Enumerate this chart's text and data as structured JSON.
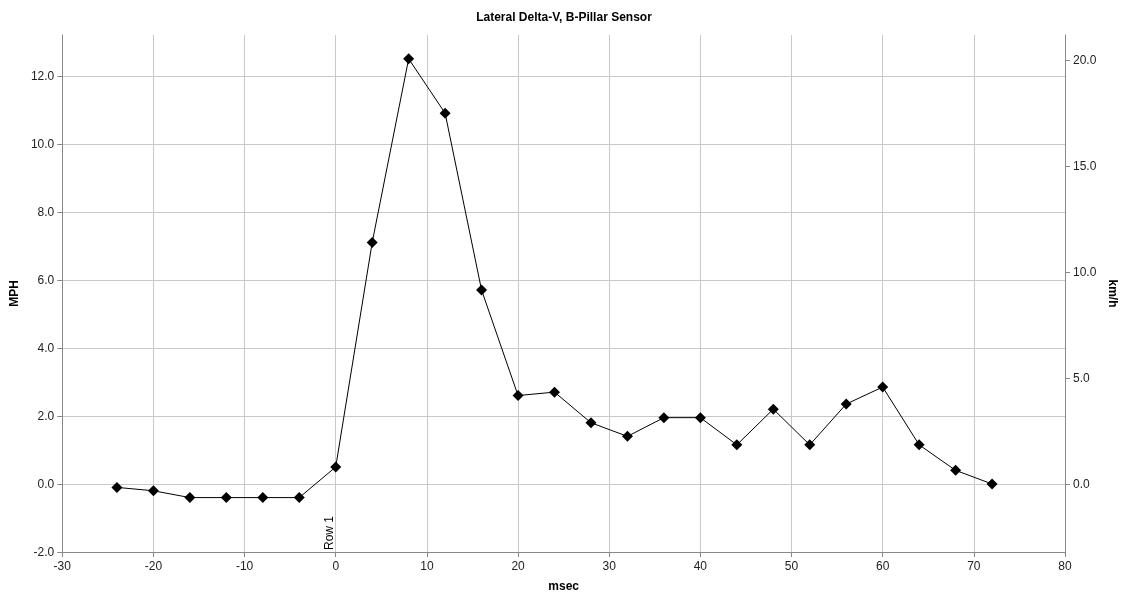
{
  "chart_data": {
    "type": "line",
    "title": "Lateral Delta-V, B-Pillar Sensor",
    "xlabel": "msec",
    "ylabel": "MPH",
    "y2label": "km/h",
    "x": [
      -24,
      -20,
      -16,
      -12,
      -8,
      -4,
      0,
      4,
      8,
      12,
      16,
      20,
      24,
      28,
      32,
      36,
      40,
      44,
      48,
      52,
      56,
      60,
      64,
      68,
      72
    ],
    "series": [
      {
        "color": "#000000",
        "values": [
          -0.1,
          -0.2,
          -0.4,
          -0.4,
          -0.4,
          -0.4,
          0.5,
          7.1,
          12.5,
          10.9,
          5.7,
          2.6,
          2.7,
          1.8,
          1.4,
          1.95,
          1.95,
          1.15,
          2.2,
          1.15,
          2.35,
          2.85,
          1.15,
          0.4,
          0.0
        ]
      }
    ],
    "xlim": [
      -30,
      80
    ],
    "xticks": [
      -30,
      -20,
      -10,
      0,
      10,
      20,
      30,
      40,
      50,
      60,
      70,
      80
    ],
    "ylim": [
      -2,
      13.2
    ],
    "yticks": [
      {
        "value": -2,
        "label": "-2.0"
      },
      {
        "value": 0,
        "label": "0.0"
      },
      {
        "value": 2,
        "label": "2.0"
      },
      {
        "value": 4,
        "label": "4.0"
      },
      {
        "value": 6,
        "label": "6.0"
      },
      {
        "value": 8,
        "label": "8.0"
      },
      {
        "value": 10,
        "label": "10.0"
      },
      {
        "value": 12,
        "label": "12.0"
      }
    ],
    "y2lim": [
      -3.2,
      21.2
    ],
    "y2ticks": [
      {
        "value": 0,
        "label": "0.0"
      },
      {
        "value": 5,
        "label": "5.0"
      },
      {
        "value": 10,
        "label": "10.0"
      },
      {
        "value": 15,
        "label": "15.0"
      },
      {
        "value": 20,
        "label": "20.0"
      }
    ],
    "annotations": [
      "Row 1"
    ],
    "grid": true,
    "marker": "diamond",
    "line_style": "solid"
  }
}
